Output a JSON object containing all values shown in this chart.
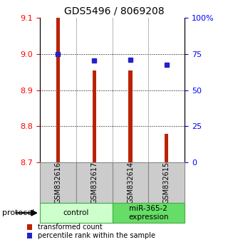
{
  "title": "GDS5496 / 8069208",
  "samples": [
    "GSM832616",
    "GSM832617",
    "GSM832614",
    "GSM832615"
  ],
  "bar_values": [
    9.1,
    8.955,
    8.955,
    8.78
  ],
  "bar_base": 8.7,
  "percentile_values": [
    75.0,
    70.5,
    71.0,
    67.5
  ],
  "ylim_left": [
    8.7,
    9.1
  ],
  "ylim_right": [
    0,
    100
  ],
  "yticks_left": [
    8.7,
    8.8,
    8.9,
    9.0,
    9.1
  ],
  "yticks_right": [
    0,
    25,
    50,
    75,
    100
  ],
  "ytick_labels_right": [
    "0",
    "25",
    "50",
    "75",
    "100%"
  ],
  "bar_color": "#bb2200",
  "square_color": "#2222cc",
  "grid_color": "#000000",
  "groups": [
    {
      "label": "control",
      "indices": [
        0,
        1
      ],
      "color": "#ccffcc",
      "edge": "#44aa44"
    },
    {
      "label": "miR-365-2\nexpression",
      "indices": [
        2,
        3
      ],
      "color": "#66dd66",
      "edge": "#44aa44"
    }
  ],
  "legend_bar_label": "transformed count",
  "legend_sq_label": "percentile rank within the sample",
  "protocol_label": "protocol",
  "bg_color": "#ffffff",
  "sample_box_color": "#cccccc",
  "sample_box_edge": "#888888"
}
